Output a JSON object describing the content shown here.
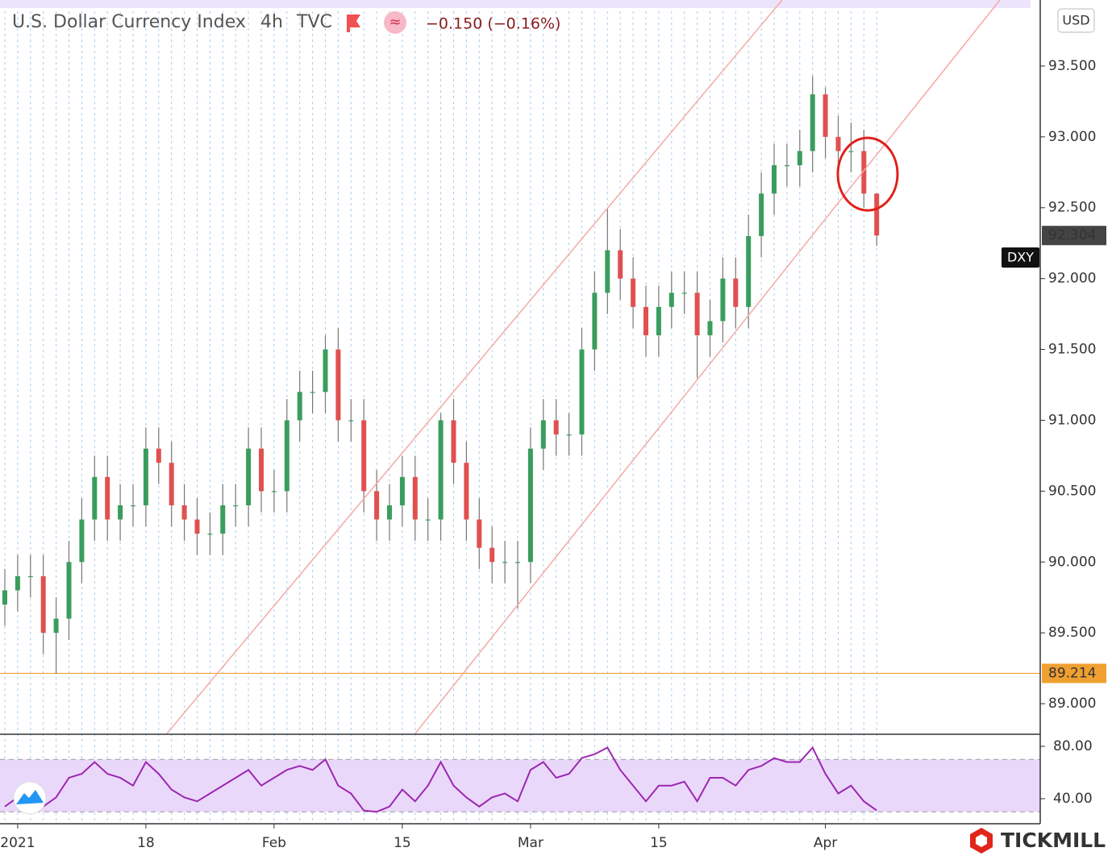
{
  "brand": "TICKMILL",
  "chart_data": [
    {
      "type": "candlestick",
      "title": "U.S. Dollar Currency Index",
      "interval": "4h",
      "source": "TVC",
      "change": "−0.150 (−0.16%)",
      "currency": "USD",
      "symbol": "DXY",
      "categories": [
        null,
        "2021",
        null,
        null,
        null,
        null,
        null,
        null,
        null,
        null,
        null,
        "18",
        null,
        null,
        null,
        null,
        null,
        null,
        null,
        null,
        null,
        "Feb",
        null,
        null,
        null,
        null,
        null,
        null,
        null,
        null,
        null,
        "15",
        null,
        null,
        null,
        null,
        null,
        null,
        null,
        null,
        null,
        "Mar",
        null,
        null,
        null,
        null,
        null,
        null,
        null,
        null,
        null,
        "15",
        null,
        null,
        null,
        null,
        null,
        null,
        null,
        null,
        null,
        null,
        null,
        null,
        "Apr",
        null,
        null,
        null,
        null
      ],
      "open": [
        89.7,
        89.8,
        89.9,
        89.9,
        89.5,
        89.6,
        90.0,
        90.3,
        90.6,
        90.3,
        90.4,
        90.4,
        90.8,
        90.7,
        90.4,
        90.3,
        90.2,
        90.2,
        90.4,
        90.4,
        90.8,
        90.5,
        90.5,
        91.0,
        91.2,
        91.2,
        91.5,
        91.0,
        91.0,
        90.5,
        90.3,
        90.4,
        90.6,
        90.3,
        90.3,
        91.0,
        90.7,
        90.3,
        90.1,
        90.0,
        90.0,
        90.0,
        90.8,
        91.0,
        90.9,
        90.9,
        91.5,
        91.9,
        92.2,
        92.0,
        91.8,
        91.6,
        91.8,
        91.9,
        91.9,
        91.6,
        91.7,
        92.0,
        91.8,
        92.3,
        92.6,
        92.8,
        92.8,
        92.9,
        93.3,
        93.0,
        92.9,
        92.9,
        92.6
      ],
      "high": [
        89.95,
        90.05,
        90.05,
        90.05,
        89.75,
        90.15,
        90.45,
        90.75,
        90.75,
        90.55,
        90.55,
        90.95,
        90.95,
        90.85,
        90.55,
        90.45,
        90.35,
        90.55,
        90.55,
        90.95,
        90.95,
        90.65,
        91.15,
        91.35,
        91.35,
        91.6,
        91.65,
        91.15,
        91.15,
        90.65,
        90.55,
        90.75,
        90.75,
        90.45,
        91.05,
        91.15,
        90.85,
        90.45,
        90.25,
        90.15,
        90.15,
        90.95,
        91.15,
        91.15,
        91.05,
        91.65,
        92.05,
        92.5,
        92.35,
        92.15,
        91.95,
        91.95,
        92.05,
        92.05,
        92.05,
        91.85,
        92.15,
        92.15,
        92.45,
        92.75,
        92.95,
        92.95,
        93.05,
        93.43,
        93.35,
        93.15,
        93.1,
        93.05,
        92.6
      ],
      "low": [
        89.55,
        89.65,
        89.75,
        89.35,
        89.21,
        89.45,
        89.85,
        90.15,
        90.15,
        90.15,
        90.25,
        90.25,
        90.55,
        90.25,
        90.15,
        90.05,
        90.05,
        90.05,
        90.25,
        90.25,
        90.35,
        90.35,
        90.35,
        90.85,
        91.05,
        91.05,
        90.85,
        90.85,
        90.35,
        90.15,
        90.15,
        90.25,
        90.15,
        90.15,
        90.15,
        90.55,
        90.15,
        89.95,
        89.85,
        89.85,
        89.67,
        89.85,
        90.65,
        90.75,
        90.75,
        90.75,
        91.35,
        91.75,
        91.85,
        91.65,
        91.45,
        91.45,
        91.65,
        91.75,
        91.3,
        91.45,
        91.55,
        91.65,
        91.65,
        92.15,
        92.45,
        92.65,
        92.65,
        92.75,
        92.85,
        92.75,
        92.75,
        92.5,
        92.23
      ],
      "close": [
        89.8,
        89.9,
        89.9,
        89.5,
        89.6,
        90.0,
        90.3,
        90.6,
        90.3,
        90.4,
        90.4,
        90.8,
        90.7,
        90.4,
        90.3,
        90.2,
        90.2,
        90.4,
        90.4,
        90.8,
        90.5,
        90.5,
        91.0,
        91.2,
        91.2,
        91.5,
        91.0,
        91.0,
        90.5,
        90.3,
        90.4,
        90.6,
        90.3,
        90.3,
        91.0,
        90.7,
        90.3,
        90.1,
        90.0,
        90.0,
        90.0,
        90.8,
        91.0,
        90.9,
        90.9,
        91.5,
        91.9,
        92.2,
        92.0,
        91.8,
        91.6,
        91.8,
        91.9,
        91.9,
        91.6,
        91.7,
        92.0,
        91.8,
        92.3,
        92.6,
        92.8,
        92.8,
        92.9,
        93.3,
        93.0,
        92.9,
        92.9,
        92.6,
        92.304
      ],
      "up_color": "#3a9d5d",
      "down_color": "#e0504f",
      "wick_color": "#777777",
      "ylim": [
        88.79,
        93.966
      ],
      "yticks": [
        {
          "value": 89.0,
          "label": "89.000"
        },
        {
          "value": 89.5,
          "label": "89.500"
        },
        {
          "value": 90.0,
          "label": "90.000"
        },
        {
          "value": 90.5,
          "label": "90.500"
        },
        {
          "value": 91.0,
          "label": "91.000"
        },
        {
          "value": 91.5,
          "label": "91.500"
        },
        {
          "value": 92.0,
          "label": "92.000"
        },
        {
          "value": 92.5,
          "label": "92.500"
        },
        {
          "value": 93.0,
          "label": "93.000"
        },
        {
          "value": 93.5,
          "label": "93.500"
        }
      ],
      "xgrid": true,
      "hline": {
        "value": 89.214,
        "color": "#f0a030"
      }
    },
    {
      "type": "line",
      "color": "#9c27b0",
      "values": [
        34,
        41,
        44,
        34,
        41,
        56,
        59,
        68,
        59,
        56,
        50,
        68,
        59,
        47,
        41,
        38,
        44,
        50,
        56,
        62,
        50,
        56,
        62,
        65,
        62,
        70,
        50,
        44,
        31,
        30,
        34,
        47,
        38,
        50,
        68,
        50,
        41,
        34,
        41,
        44,
        38,
        62,
        68,
        56,
        59,
        71,
        74,
        79,
        62,
        50,
        38,
        50,
        50,
        53,
        38,
        56,
        56,
        50,
        62,
        65,
        71,
        68,
        68,
        79,
        59,
        44,
        50,
        38,
        31
      ],
      "ylim": [
        20.9,
        88.6
      ],
      "yticks": [
        {
          "value": 40,
          "label": "40.00"
        },
        {
          "value": 80,
          "label": "80.00"
        }
      ],
      "band": [
        30,
        70
      ],
      "band_color": "#ead8fb"
    }
  ]
}
